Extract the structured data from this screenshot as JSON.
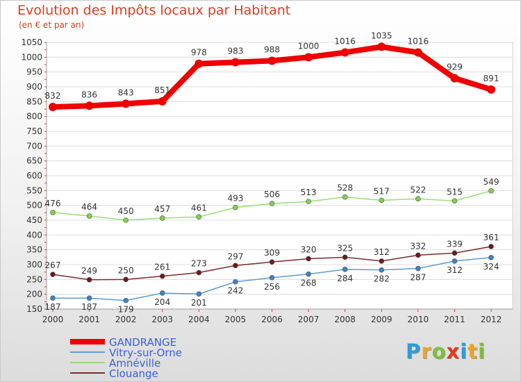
{
  "header": {
    "title": "Evolution des Impôts locaux par Habitant",
    "subtitle": "(en € et par an)"
  },
  "logo": {
    "text": "Proxiti",
    "letter_colors": [
      "#2f9bd6",
      "#e8a62a",
      "#7fbf3a",
      "#e23a1e",
      "#2f9bd6",
      "#e8a62a",
      "#7fbf3a"
    ]
  },
  "chart_data": {
    "type": "line",
    "title": "Evolution des Impôts locaux par Habitant",
    "ylabel": "(en € et par an)",
    "xlabel": "",
    "ylim": [
      150,
      1050
    ],
    "yticks": [
      150,
      200,
      250,
      300,
      350,
      400,
      450,
      500,
      550,
      600,
      650,
      700,
      750,
      800,
      850,
      900,
      950,
      1000,
      1050
    ],
    "categories": [
      "2000",
      "2001",
      "2002",
      "2003",
      "2004",
      "2005",
      "2006",
      "2007",
      "2008",
      "2009",
      "2010",
      "2011",
      "2012"
    ],
    "grid": "horizontal",
    "legend_position": "bottom-left",
    "series": [
      {
        "name": "GANDRANGE",
        "color": "#ee0000",
        "values": [
          832,
          836,
          843,
          851,
          978,
          983,
          988,
          1000,
          1016,
          1035,
          1016,
          929,
          891
        ],
        "labels_above": true
      },
      {
        "name": "Vitry-sur-Orne",
        "color": "#5d9bd1",
        "values": [
          187,
          187,
          179,
          204,
          201,
          242,
          256,
          268,
          284,
          282,
          287,
          312,
          324
        ],
        "labels_above": false
      },
      {
        "name": "Amnéville",
        "color": "#99dd77",
        "values": [
          476,
          464,
          450,
          457,
          461,
          493,
          506,
          513,
          528,
          517,
          522,
          515,
          549
        ],
        "labels_above": true
      },
      {
        "name": "Clouange",
        "color": "#7a2a2a",
        "values": [
          267,
          249,
          250,
          261,
          273,
          297,
          309,
          320,
          325,
          312,
          332,
          339,
          361
        ],
        "labels_above": true
      }
    ]
  }
}
